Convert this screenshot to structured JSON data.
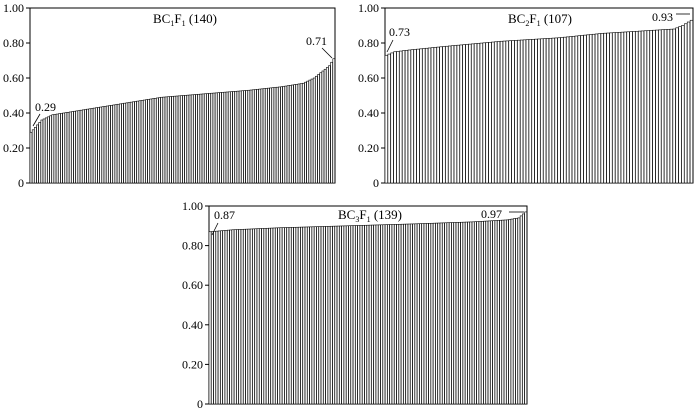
{
  "chart_data": [
    {
      "type": "bar",
      "title_main": "BC",
      "title_sub1": "1",
      "title_mid": "F",
      "title_sub2": "1",
      "title_count": " (140)",
      "n": 140,
      "ylim": [
        0,
        1.0
      ],
      "yticks": [
        "0",
        "0.20",
        "0.40",
        "0.60",
        "0.80",
        "1.00"
      ],
      "min_label": "0.29",
      "max_label": "0.71",
      "grid": false,
      "values_note_x": "bars sorted ascending, one per individual",
      "values_keypoints": [
        [
          0,
          0.29
        ],
        [
          5,
          0.36
        ],
        [
          10,
          0.39
        ],
        [
          20,
          0.41
        ],
        [
          40,
          0.45
        ],
        [
          60,
          0.49
        ],
        [
          80,
          0.51
        ],
        [
          100,
          0.53
        ],
        [
          115,
          0.55
        ],
        [
          125,
          0.57
        ],
        [
          130,
          0.6
        ],
        [
          134,
          0.64
        ],
        [
          137,
          0.67
        ],
        [
          139,
          0.71
        ]
      ]
    },
    {
      "type": "bar",
      "title_main": "BC",
      "title_sub1": "2",
      "title_mid": "F",
      "title_sub2": "1",
      "title_count": " (107)",
      "n": 107,
      "ylim": [
        0,
        1.0
      ],
      "yticks": [
        "0",
        "0.20",
        "0.40",
        "0.60",
        "0.80",
        "1.00"
      ],
      "min_label": "0.73",
      "max_label": "0.93",
      "grid": false,
      "values_keypoints": [
        [
          0,
          0.73
        ],
        [
          3,
          0.75
        ],
        [
          8,
          0.76
        ],
        [
          20,
          0.78
        ],
        [
          40,
          0.81
        ],
        [
          60,
          0.83
        ],
        [
          75,
          0.855
        ],
        [
          90,
          0.87
        ],
        [
          100,
          0.88
        ],
        [
          103,
          0.9
        ],
        [
          106,
          0.93
        ]
      ]
    },
    {
      "type": "bar",
      "title_main": "BC",
      "title_sub1": "3",
      "title_mid": "F",
      "title_sub2": "1",
      "title_count": " (139)",
      "n": 139,
      "ylim": [
        0,
        1.0
      ],
      "yticks": [
        "0",
        "0.20",
        "0.40",
        "0.60",
        "0.80",
        "1.00"
      ],
      "min_label": "0.87",
      "max_label": "0.97",
      "grid": false,
      "values_keypoints": [
        [
          0,
          0.87
        ],
        [
          10,
          0.88
        ],
        [
          30,
          0.89
        ],
        [
          60,
          0.9
        ],
        [
          90,
          0.91
        ],
        [
          115,
          0.92
        ],
        [
          130,
          0.93
        ],
        [
          135,
          0.94
        ],
        [
          138,
          0.97
        ]
      ]
    }
  ]
}
